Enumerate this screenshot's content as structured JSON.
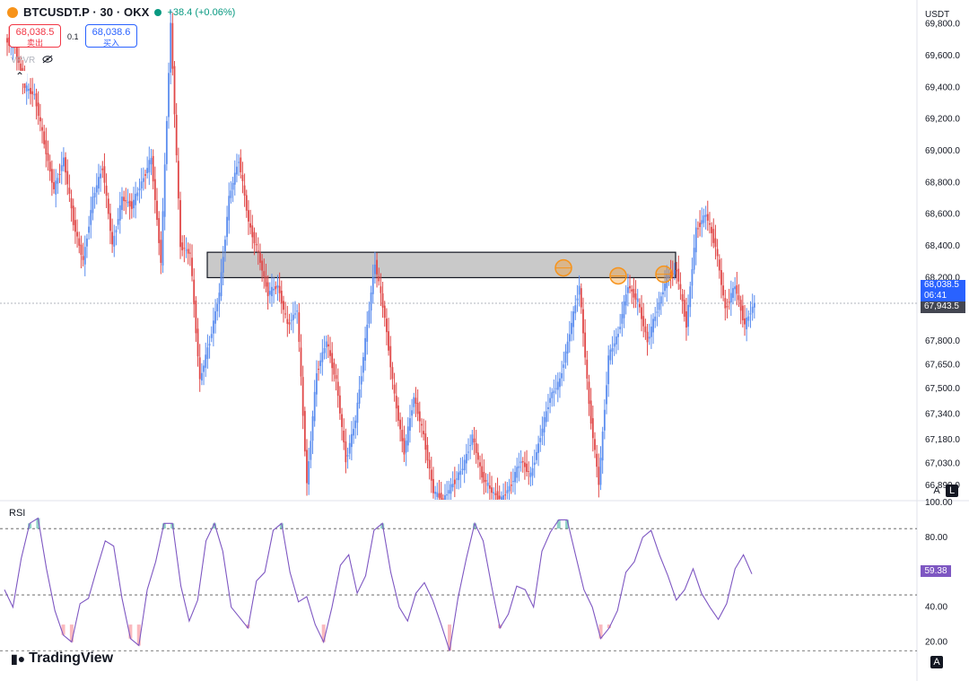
{
  "header": {
    "symbol": "BTCUSDT.P · 30 · OKX",
    "change": "+38.4 (+0.06%)",
    "sell_price": "68,038.5",
    "sell_label": "卖出",
    "spread": "0.1",
    "buy_price": "68,038.6",
    "buy_label": "买入",
    "indicator_label": "VPVR",
    "eye_icon": "eye-off-icon",
    "collapse_icon": "chevron-up-icon"
  },
  "axis": {
    "unit": "USDT",
    "price_ticks": [
      "69,800.0",
      "69,600.0",
      "69,400.0",
      "69,200.0",
      "69,000.0",
      "68,800.0",
      "68,600.0",
      "68,400.0",
      "68,200.0",
      "67,800.0",
      "67,650.0",
      "67,500.0",
      "67,340.0",
      "67,180.0",
      "67,030.0",
      "66,890.0"
    ],
    "last_price": "68,038.5",
    "countdown": "06:41",
    "open_price": "67,943.5",
    "auto_button": "A",
    "log_button": "L"
  },
  "rsi": {
    "label": "RSI",
    "value": "59.38",
    "ticks": [
      "100.00",
      "80.00",
      "40.00",
      "20.00"
    ],
    "auto_button": "A"
  },
  "brand": {
    "name": "TradingView",
    "logo_icon": "tradingview-logo-icon"
  },
  "colors": {
    "up": "#5b8def",
    "down": "#e04848",
    "rsi_line": "#7e57c2",
    "zone_fill": "#c9c9c9",
    "marker": "#f7931a"
  },
  "chart_data": [
    {
      "type": "candlestick",
      "title": "BTCUSDT.P · 30 · OKX",
      "ylim": [
        66800,
        69950
      ],
      "resistance_zone": [
        68200,
        68360
      ],
      "touch_markers": [
        68250,
        68200,
        68210
      ],
      "last_price": 68038.5,
      "close_path": [
        69700,
        69650,
        69400,
        69350,
        69050,
        68750,
        68950,
        68550,
        68300,
        68700,
        68900,
        68400,
        68700,
        68650,
        68800,
        68950,
        68300,
        69800,
        68400,
        68350,
        67550,
        67800,
        68100,
        68700,
        68950,
        68550,
        68350,
        68100,
        68150,
        67900,
        68000,
        66900,
        67600,
        67800,
        67550,
        67050,
        67300,
        67800,
        68300,
        67950,
        67450,
        67100,
        67450,
        67200,
        66850,
        66800,
        66900,
        67000,
        67200,
        66950,
        66850,
        66800,
        66900,
        67050,
        66950,
        67200,
        67450,
        67550,
        67850,
        68150,
        67400,
        66900,
        67700,
        67850,
        68150,
        68050,
        67800,
        68000,
        68200,
        68250,
        67900,
        68500,
        68600,
        68400,
        68000,
        68150,
        67900,
        68040
      ]
    },
    {
      "type": "line",
      "title": "RSI",
      "ylim": [
        10,
        100
      ],
      "guides": [
        85,
        47,
        15
      ],
      "values": [
        50,
        40,
        68,
        88,
        91,
        62,
        38,
        24,
        20,
        42,
        45,
        62,
        78,
        75,
        45,
        22,
        18,
        50,
        66,
        88,
        88,
        52,
        32,
        44,
        78,
        88,
        72,
        40,
        34,
        28,
        55,
        60,
        84,
        88,
        60,
        43,
        46,
        30,
        20,
        40,
        64,
        70,
        48,
        58,
        84,
        88,
        60,
        40,
        32,
        48,
        54,
        44,
        30,
        15,
        45,
        68,
        88,
        78,
        52,
        28,
        36,
        52,
        50,
        40,
        72,
        83,
        90,
        90,
        70,
        50,
        40,
        22,
        28,
        38,
        60,
        66,
        80,
        84,
        70,
        58,
        44,
        50,
        62,
        48,
        40,
        33,
        42,
        62,
        70,
        59
      ]
    }
  ]
}
